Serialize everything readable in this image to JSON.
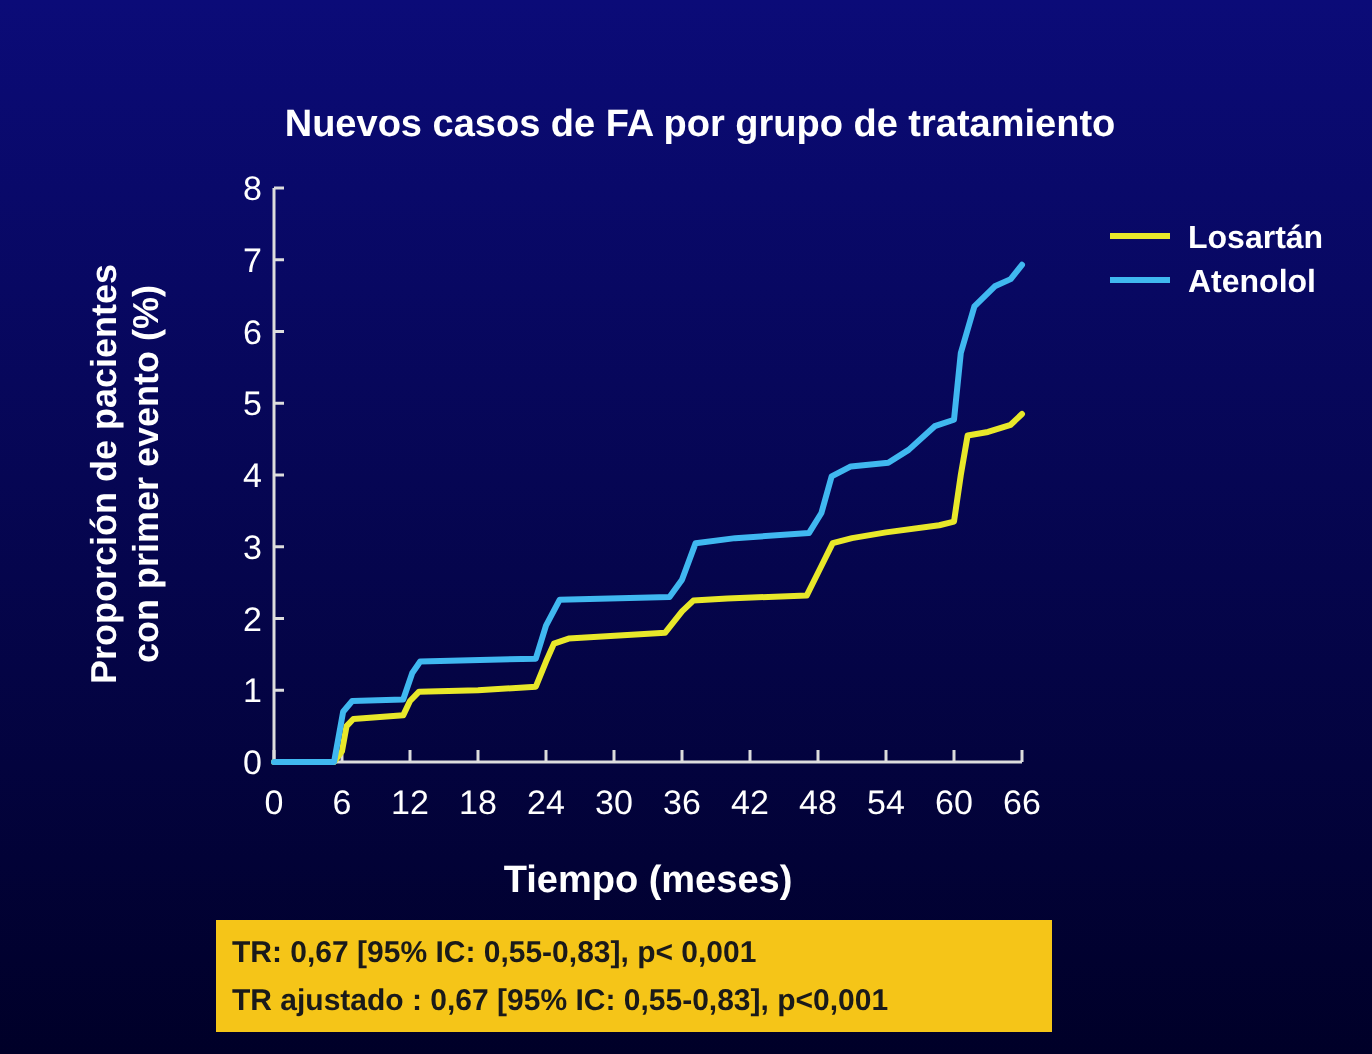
{
  "chart_data": {
    "type": "line",
    "title": "Nuevos casos de FA por grupo de tratamiento",
    "xlabel": "Tiempo (meses)",
    "ylabel": "Proporción de pacientes\ncon primer evento (%)",
    "annotations": [
      "TR: 0,67 [95% IC: 0,55-0,83], p< 0,001",
      "TR ajustado : 0,67 [95% IC: 0,55-0,83], p<0,001"
    ],
    "series": [
      {
        "name": "Losartán",
        "color": "#e8e82a",
        "x": [
          0,
          5.3,
          6,
          6.4,
          7,
          11.4,
          12,
          12.8,
          18,
          23.1,
          24,
          24.7,
          26,
          34.5,
          36,
          37,
          40,
          47,
          48.2,
          49.3,
          51,
          54,
          58.7,
          60,
          60.6,
          61.2,
          63,
          65,
          66
        ],
        "values": [
          0,
          0,
          0.15,
          0.5,
          0.6,
          0.65,
          0.85,
          0.98,
          1.0,
          1.05,
          1.4,
          1.65,
          1.72,
          1.8,
          2.1,
          2.25,
          2.28,
          2.32,
          2.7,
          3.05,
          3.12,
          3.2,
          3.3,
          3.35,
          4.0,
          4.55,
          4.6,
          4.7,
          4.85
        ]
      },
      {
        "name": "Atenolol",
        "color": "#40b8f0",
        "x": [
          0,
          5.3,
          6.1,
          6.9,
          11.4,
          12.2,
          12.9,
          23.1,
          24,
          25.2,
          34.9,
          36,
          37.2,
          40.7,
          47.2,
          48.3,
          49.2,
          50.9,
          54.2,
          56,
          58.3,
          60,
          60.6,
          61.8,
          63.6,
          65,
          66
        ],
        "values": [
          0,
          0,
          0.7,
          0.85,
          0.87,
          1.24,
          1.4,
          1.44,
          1.9,
          2.26,
          2.3,
          2.54,
          3.05,
          3.12,
          3.19,
          3.47,
          3.98,
          4.12,
          4.17,
          4.35,
          4.68,
          4.77,
          5.7,
          6.35,
          6.63,
          6.73,
          6.93
        ]
      }
    ],
    "xlim": [
      0,
      66
    ],
    "xticks": [
      0,
      6,
      12,
      18,
      24,
      30,
      36,
      42,
      48,
      54,
      60,
      66
    ],
    "ylim": [
      0,
      8
    ],
    "yticks": [
      0,
      1,
      2,
      3,
      4,
      5,
      6,
      7,
      8
    ],
    "grid": false,
    "legend": "right",
    "line_style": "solid"
  }
}
